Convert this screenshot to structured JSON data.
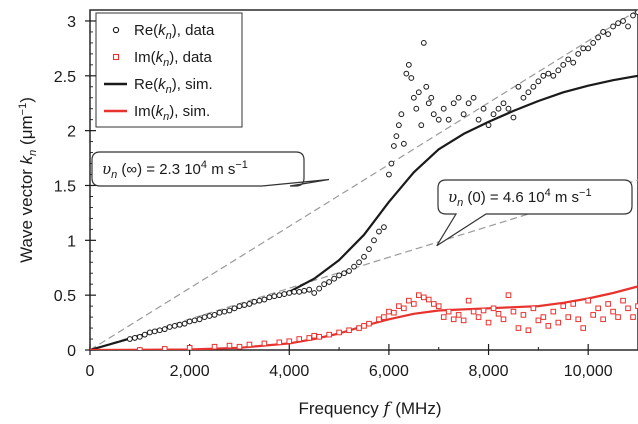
{
  "chart_data": {
    "type": "scatter",
    "xlabel": "Frequency f (MHz)",
    "ylabel": "Wave vector kn (μm−1)",
    "xlim": [
      0,
      11000
    ],
    "ylim": [
      0,
      3.1
    ],
    "grid": false,
    "legend_placement": "top-left",
    "x_tick_labels": [
      "0",
      "2,000",
      "4,000",
      "6,000",
      "8,000",
      "10,000"
    ],
    "x_ticks": [
      0,
      2000,
      4000,
      6000,
      8000,
      10000
    ],
    "y_tick_labels": [
      "0",
      "0.5",
      "1",
      "1.5",
      "2",
      "2.5",
      "3"
    ],
    "y_ticks": [
      0,
      0.5,
      1,
      1.5,
      2,
      2.5,
      3
    ],
    "legend": [
      "Re(kn), data",
      "Im(kn), data",
      "Re(kn), sim.",
      "Im(kn), sim."
    ],
    "annotations": [
      {
        "text": "υn (∞) = 2.3 10^4 m s^−1",
        "points_to": [
          5500,
          1.5
        ]
      },
      {
        "text": "υn (0) = 4.6 10^4 m s^−1",
        "points_to": [
          7000,
          0.95
        ]
      }
    ],
    "colors": {
      "re": "#1a1a1a",
      "im": "#e8322e",
      "guide": "#9a9a9a"
    },
    "series": [
      {
        "name": "Re(kn), data",
        "marker": "open-circle",
        "x": [
          800,
          900,
          1000,
          1100,
          1200,
          1300,
          1400,
          1500,
          1600,
          1700,
          1800,
          1900,
          2000,
          2100,
          2200,
          2300,
          2400,
          2500,
          2600,
          2700,
          2800,
          2900,
          3000,
          3100,
          3200,
          3300,
          3400,
          3500,
          3600,
          3700,
          3800,
          3900,
          4000,
          4100,
          4200,
          4300,
          4400,
          4500,
          4600,
          4700,
          4800,
          4900,
          5000,
          5100,
          5200,
          5300,
          5400,
          5500,
          5600,
          5700,
          5800,
          5900,
          6000,
          6050,
          6100,
          6150,
          6200,
          6250,
          6300,
          6350,
          6400,
          6450,
          6500,
          6550,
          6600,
          6650,
          6700,
          6750,
          6800,
          6850,
          6900,
          7000,
          7100,
          7200,
          7300,
          7400,
          7500,
          7600,
          7700,
          7800,
          7900,
          8000,
          8100,
          8200,
          8300,
          8400,
          8500,
          8600,
          8700,
          8800,
          8900,
          9000,
          9100,
          9200,
          9300,
          9400,
          9500,
          9600,
          9700,
          9800,
          9900,
          10000,
          10100,
          10200,
          10300,
          10400,
          10500,
          10600,
          10700,
          10800,
          10900,
          11000
        ],
        "y": [
          0.1,
          0.11,
          0.12,
          0.14,
          0.16,
          0.17,
          0.18,
          0.19,
          0.21,
          0.22,
          0.23,
          0.24,
          0.26,
          0.27,
          0.28,
          0.3,
          0.31,
          0.32,
          0.34,
          0.35,
          0.36,
          0.38,
          0.4,
          0.41,
          0.42,
          0.44,
          0.45,
          0.46,
          0.48,
          0.49,
          0.5,
          0.51,
          0.52,
          0.53,
          0.53,
          0.54,
          0.55,
          0.52,
          0.56,
          0.6,
          0.62,
          0.65,
          0.68,
          0.7,
          0.72,
          0.76,
          0.8,
          0.85,
          0.92,
          1.0,
          1.08,
          1.12,
          1.6,
          1.7,
          1.86,
          1.95,
          2.05,
          2.15,
          1.88,
          2.52,
          2.6,
          2.48,
          2.3,
          2.2,
          2.35,
          2.05,
          2.8,
          2.4,
          2.25,
          2.3,
          2.15,
          2.1,
          2.2,
          2.1,
          2.25,
          2.3,
          2.15,
          2.25,
          2.3,
          2.1,
          2.2,
          2.05,
          2.15,
          2.2,
          2.25,
          2.2,
          2.12,
          2.4,
          2.3,
          2.35,
          2.4,
          2.45,
          2.5,
          2.52,
          2.5,
          2.55,
          2.6,
          2.65,
          2.62,
          2.7,
          2.75,
          2.75,
          2.8,
          2.85,
          2.9,
          2.88,
          2.95,
          2.98,
          3.0,
          2.95,
          3.05,
          3.08
        ]
      },
      {
        "name": "Im(kn), data",
        "marker": "open-square",
        "x": [
          1000,
          1500,
          2000,
          2500,
          2800,
          3000,
          3200,
          3500,
          3800,
          4000,
          4200,
          4400,
          4500,
          4600,
          4800,
          5000,
          5200,
          5400,
          5500,
          5600,
          5800,
          5900,
          6000,
          6100,
          6200,
          6300,
          6400,
          6500,
          6600,
          6700,
          6800,
          6900,
          7000,
          7100,
          7200,
          7300,
          7400,
          7500,
          7600,
          7700,
          7800,
          7900,
          8000,
          8100,
          8200,
          8300,
          8400,
          8500,
          8600,
          8700,
          8800,
          8900,
          9000,
          9100,
          9200,
          9300,
          9400,
          9500,
          9600,
          9700,
          9800,
          9900,
          10000,
          10100,
          10200,
          10300,
          10400,
          10500,
          10600,
          10700,
          10800,
          10900,
          11000
        ],
        "y": [
          0.0,
          0.01,
          0.02,
          0.03,
          0.04,
          0.03,
          0.05,
          0.06,
          0.07,
          0.08,
          0.1,
          0.11,
          0.13,
          0.12,
          0.14,
          0.16,
          0.18,
          0.2,
          0.22,
          0.24,
          0.28,
          0.3,
          0.35,
          0.34,
          0.4,
          0.38,
          0.45,
          0.42,
          0.5,
          0.48,
          0.46,
          0.42,
          0.4,
          0.3,
          0.35,
          0.28,
          0.32,
          0.27,
          0.45,
          0.35,
          0.3,
          0.36,
          0.25,
          0.38,
          0.33,
          0.28,
          0.5,
          0.35,
          0.2,
          0.32,
          0.18,
          0.38,
          0.27,
          0.3,
          0.22,
          0.35,
          0.25,
          0.4,
          0.3,
          0.42,
          0.28,
          0.2,
          0.45,
          0.32,
          0.38,
          0.28,
          0.42,
          0.35,
          0.3,
          0.45,
          0.38,
          0.3,
          0.4
        ]
      },
      {
        "name": "Re(kn), sim.",
        "line": "solid",
        "x": [
          0,
          1000,
          2000,
          3000,
          4000,
          4500,
          5000,
          5500,
          6000,
          6500,
          7000,
          7500,
          8000,
          8500,
          9000,
          9500,
          10000,
          10500,
          11000
        ],
        "y": [
          0,
          0.13,
          0.26,
          0.39,
          0.53,
          0.65,
          0.82,
          1.05,
          1.35,
          1.62,
          1.83,
          1.97,
          2.08,
          2.18,
          2.27,
          2.35,
          2.41,
          2.46,
          2.5
        ]
      },
      {
        "name": "Im(kn), sim.",
        "line": "solid",
        "x": [
          0,
          2000,
          3000,
          4000,
          4500,
          5000,
          5500,
          6000,
          6500,
          7000,
          7500,
          8000,
          8500,
          9000,
          9500,
          10000,
          10500,
          11000
        ],
        "y": [
          0,
          0.005,
          0.02,
          0.06,
          0.1,
          0.15,
          0.22,
          0.28,
          0.33,
          0.36,
          0.37,
          0.38,
          0.39,
          0.4,
          0.43,
          0.47,
          0.52,
          0.58
        ]
      },
      {
        "line": "dashed",
        "x": [
          0,
          11000
        ],
        "y": [
          0,
          3.1
        ]
      },
      {
        "line": "dashed",
        "x": [
          0,
          11000
        ],
        "y": [
          0,
          1.55
        ]
      }
    ]
  }
}
